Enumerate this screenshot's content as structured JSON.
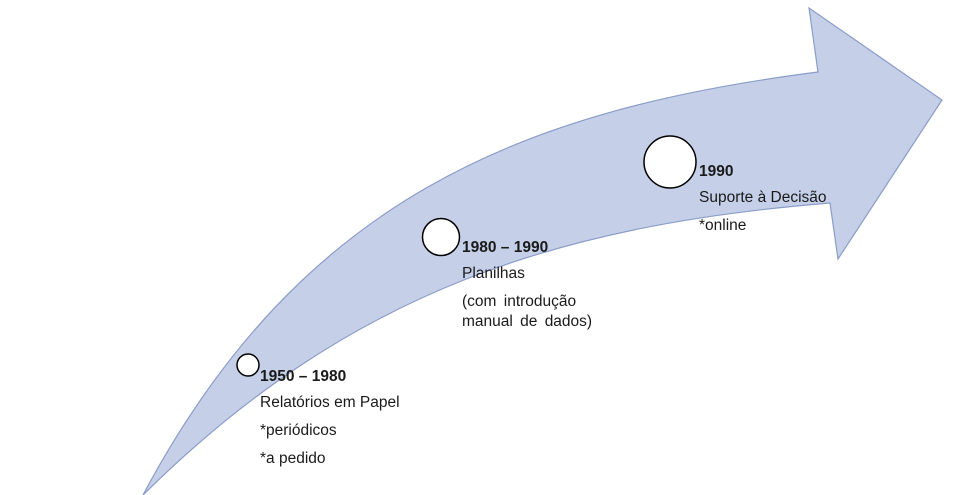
{
  "colors": {
    "arrow_fill": "#c5d0e8",
    "arrow_stroke": "#8a9cc8",
    "marker_fill": "#ffffff",
    "marker_stroke": "#000000"
  },
  "milestones": [
    {
      "period": "1950 – 1980",
      "lines": [
        "Relatórios em Papel",
        "*periódicos",
        "*a pedido"
      ]
    },
    {
      "period": "1980 – 1990",
      "lines": [
        "Planilhas",
        "(com introdução  manual de dados)"
      ]
    },
    {
      "period": "1990",
      "lines": [
        "Suporte à Decisão",
        "*online"
      ]
    }
  ]
}
